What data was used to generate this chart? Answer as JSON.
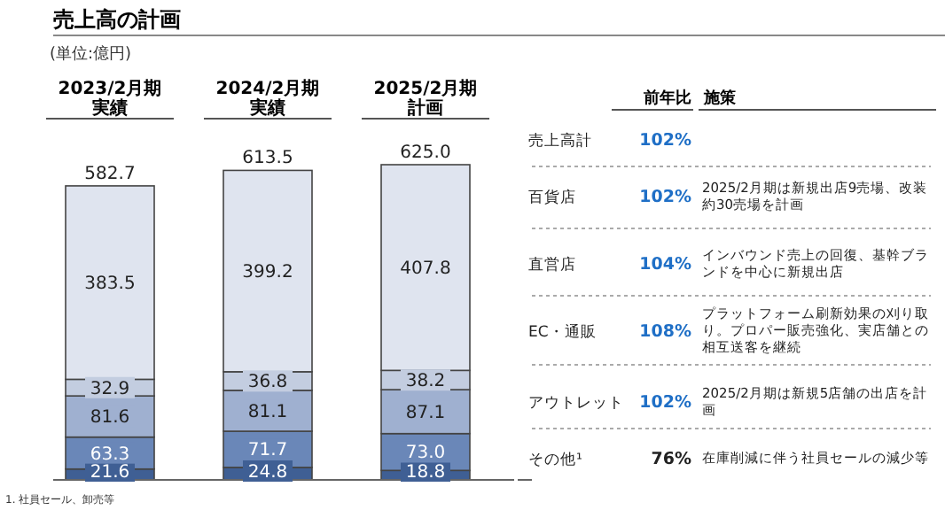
{
  "chart_data": {
    "type": "bar",
    "stacked": true,
    "title": "売上高の計画",
    "subtitle": "(単位:億円)",
    "categories": [
      "2023/2月期実績",
      "2024/2月期実績",
      "2025/2月期計画"
    ],
    "series": [
      {
        "name": "その他¹",
        "color": "#3f5f94",
        "values": [
          21.6,
          24.8,
          18.8
        ],
        "value_labels": [
          "21.6",
          "24.8",
          "18.8"
        ]
      },
      {
        "name": "アウトレット",
        "color": "#6a87b8",
        "values": [
          63.3,
          71.7,
          73.0
        ],
        "value_labels": [
          "63.3",
          "71.7",
          "73.0"
        ]
      },
      {
        "name": "EC・通販",
        "color": "#9fb0d0",
        "values": [
          81.6,
          81.1,
          87.1
        ],
        "value_labels": [
          "81.6",
          "81.1",
          "87.1"
        ]
      },
      {
        "name": "直営店",
        "color": "#c3cde0",
        "values": [
          32.9,
          36.8,
          38.2
        ],
        "value_labels": [
          "32.9",
          "36.8",
          "38.2"
        ]
      },
      {
        "name": "百貨店",
        "color": "#dfe4ef",
        "values": [
          383.5,
          399.2,
          407.8
        ],
        "value_labels": [
          "383.5",
          "399.2",
          "407.8"
        ]
      }
    ],
    "totals": [
      "582.7",
      "613.5",
      "625.0"
    ],
    "annotations": [
      "前年比",
      "施策",
      "売上高計",
      "102%",
      "102%",
      "2025/2月期は新規出店9売場、改装約30売場を計画",
      "104%",
      "インバウンド売上の回復、基幹ブランドを中心に新規出店",
      "108%",
      "プラットフォーム刷新効果の刈り取り。プロパー販売強化、実店舗との相互送客を継続",
      "102%",
      "2025/2月期は新規5店舗の出店を計画",
      "76%",
      "在庫削減に伴う社員セールの減少等",
      "1. 社員セール、卸売等"
    ]
  }
}
